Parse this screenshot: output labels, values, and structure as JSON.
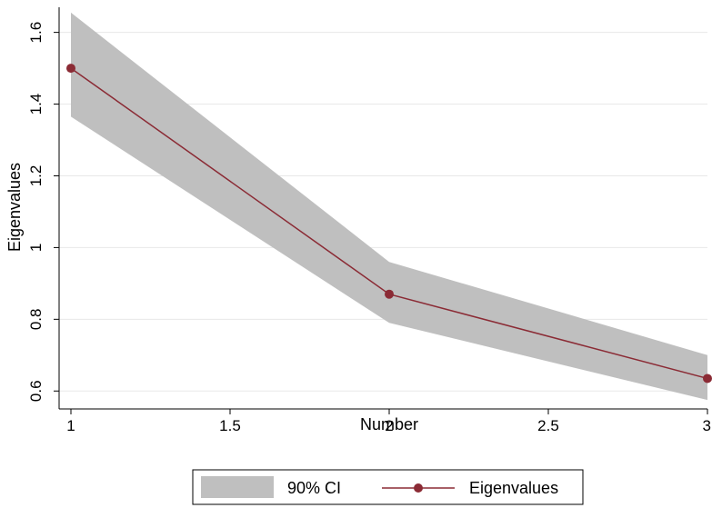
{
  "chart_data": {
    "type": "line",
    "xlabel": "Number",
    "ylabel": "Eigenvalues",
    "xlim": [
      1,
      3
    ],
    "ylim": [
      0.55,
      1.67
    ],
    "x_ticks": [
      1,
      1.5,
      2,
      2.5,
      3
    ],
    "x_tick_labels": [
      "1",
      "1.5",
      "2",
      "2.5",
      "3"
    ],
    "y_ticks": [
      0.6,
      0.8,
      1,
      1.2,
      1.4,
      1.6
    ],
    "y_tick_labels": [
      "0.6",
      "0.8",
      "1",
      "1.2",
      "1.4",
      "1.6"
    ],
    "grid": true,
    "legend_position": "bottom",
    "series": [
      {
        "name": "Eigenvalues",
        "x": [
          1,
          2,
          3
        ],
        "values": [
          1.5,
          0.87,
          0.635
        ],
        "color": "#8b2b35"
      }
    ],
    "band": {
      "name": "90% CI",
      "x": [
        1,
        2,
        3
      ],
      "upper": [
        1.655,
        0.96,
        0.7
      ],
      "lower": [
        1.365,
        0.79,
        0.575
      ],
      "color": "#bfbfbf"
    }
  }
}
